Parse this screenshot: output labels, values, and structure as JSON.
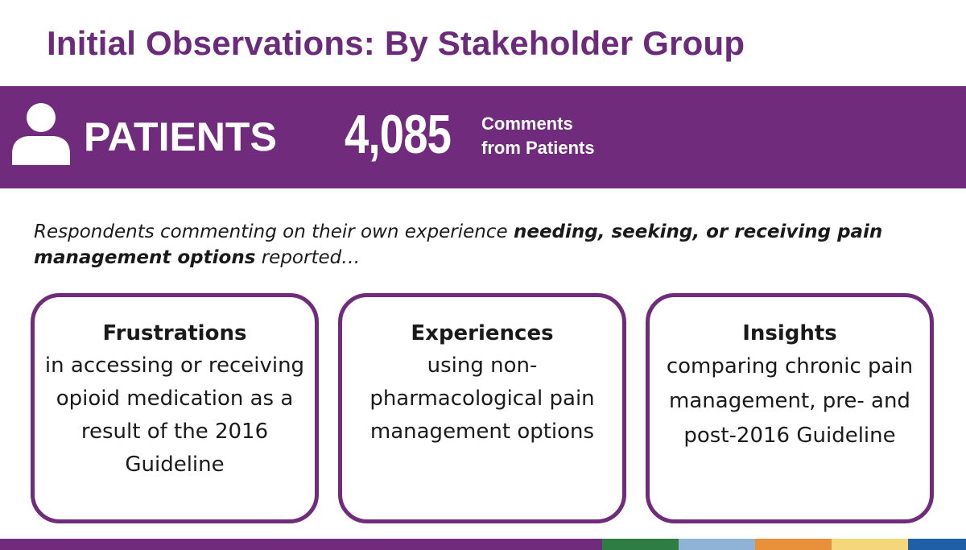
{
  "title": "Initial Observations: By Stakeholder Group",
  "band": {
    "icon": "person-icon",
    "label": "PATIENTS",
    "count": "4,085",
    "caption_line1": "Comments",
    "caption_line2": "from Patients"
  },
  "intro": {
    "before": "Respondents commenting on their own experience ",
    "emphasis": "needing, seeking, or receiving pain management options",
    "after": " reported…"
  },
  "cards": [
    {
      "heading": "Frustrations",
      "body": "in accessing or receiving opioid medication as a result of the 2016 Guideline"
    },
    {
      "heading": "Experiences",
      "body": "using non-pharmacological pain management options"
    },
    {
      "heading": "Insights",
      "body": "comparing chronic pain management, pre- and post-2016 Guideline"
    }
  ],
  "colors": {
    "primary": "#702b7c",
    "stripe": [
      "#702b7c",
      "#2e7d44",
      "#8fb3d6",
      "#e8913a",
      "#f5d77b",
      "#1f5fa8"
    ]
  }
}
